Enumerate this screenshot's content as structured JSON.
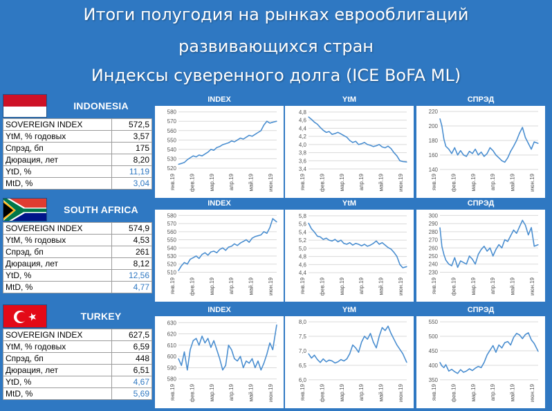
{
  "title": {
    "line1": "Итоги полугодия на рынках еврооблигаций",
    "line2": "развивающихся стран",
    "line3": "Индексы суверенного долга (ICE BoFA ML)"
  },
  "colors": {
    "background": "#2f78c2",
    "line": "#4a8ed0",
    "blue_value": "#2f78c2"
  },
  "months": [
    "янв.19",
    "фев.19",
    "мар.19",
    "апр.19",
    "май.19",
    "июн.19"
  ],
  "countries": [
    {
      "name": "INDONESIA",
      "flag": "indonesia-flag-icon",
      "stats": [
        {
          "label": "SOVEREIGN INDEX",
          "value": "572,5"
        },
        {
          "label": "YtM, % годовых",
          "value": "3,57"
        },
        {
          "label": "Спрэд, бп",
          "value": "175"
        },
        {
          "label": "Дюрация, лет",
          "value": "8,20"
        },
        {
          "label": "YtD, %",
          "value": "11,19"
        },
        {
          "label": "MtD, %",
          "value": "3,04"
        }
      ]
    },
    {
      "name": "SOUTH AFRICA",
      "flag": "south-africa-flag-icon",
      "stats": [
        {
          "label": "SOVEREIGN INDEX",
          "value": "574,9"
        },
        {
          "label": "YtM, % годовых",
          "value": "4,53"
        },
        {
          "label": "Спрэд, бп",
          "value": "261"
        },
        {
          "label": "Дюрация, лет",
          "value": "8,12"
        },
        {
          "label": "YtD, %",
          "value": "12,56"
        },
        {
          "label": "MtD, %",
          "value": "4,77"
        }
      ]
    },
    {
      "name": "TURKEY",
      "flag": "turkey-flag-icon",
      "stats": [
        {
          "label": "SOVEREIGN INDEX",
          "value": "627,5"
        },
        {
          "label": "YtM, % годовых",
          "value": "6,59"
        },
        {
          "label": "Спрэд, бп",
          "value": "448"
        },
        {
          "label": "Дюрация, лет",
          "value": "6,51"
        },
        {
          "label": "YtD, %",
          "value": "4,67"
        },
        {
          "label": "MtD, %",
          "value": "5,69"
        }
      ]
    }
  ],
  "chart_data": [
    {
      "type": "line",
      "country": "INDONESIA",
      "title": "INDEX",
      "y_ticks": [
        "580",
        "570",
        "560",
        "550",
        "540",
        "530",
        "520"
      ],
      "ylim": [
        517,
        582
      ],
      "x": [
        0,
        0.03,
        0.06,
        0.09,
        0.12,
        0.15,
        0.18,
        0.21,
        0.24,
        0.27,
        0.3,
        0.33,
        0.36,
        0.39,
        0.42,
        0.45,
        0.48,
        0.51,
        0.54,
        0.57,
        0.6,
        0.63,
        0.66,
        0.69,
        0.72,
        0.75,
        0.78,
        0.81,
        0.84,
        0.87,
        0.9,
        0.93,
        0.96,
        1.0
      ],
      "values": [
        524,
        525,
        526,
        529,
        531,
        533,
        532,
        534,
        533,
        535,
        537,
        540,
        539,
        542,
        543,
        545,
        546,
        547,
        549,
        548,
        550,
        552,
        551,
        553,
        555,
        554,
        556,
        558,
        560,
        566,
        570,
        568,
        569,
        570
      ]
    },
    {
      "type": "line",
      "country": "INDONESIA",
      "title": "YtM",
      "y_ticks": [
        "4,8",
        "4,6",
        "4,4",
        "4,2",
        "4,0",
        "3,8",
        "3,6",
        "3,4"
      ],
      "ylim": [
        3.35,
        4.85
      ],
      "x": [
        0,
        0.03,
        0.06,
        0.09,
        0.12,
        0.15,
        0.18,
        0.21,
        0.24,
        0.27,
        0.3,
        0.33,
        0.36,
        0.39,
        0.42,
        0.45,
        0.48,
        0.51,
        0.54,
        0.57,
        0.6,
        0.63,
        0.66,
        0.69,
        0.72,
        0.75,
        0.78,
        0.81,
        0.84,
        0.87,
        0.9,
        0.93,
        0.96,
        1.0
      ],
      "values": [
        4.68,
        4.62,
        4.55,
        4.5,
        4.42,
        4.35,
        4.3,
        4.32,
        4.25,
        4.27,
        4.3,
        4.26,
        4.22,
        4.18,
        4.1,
        4.05,
        4.08,
        4.0,
        4.02,
        4.05,
        4.0,
        3.98,
        3.95,
        3.97,
        4.0,
        3.94,
        3.92,
        3.96,
        3.9,
        3.8,
        3.72,
        3.6,
        3.58,
        3.57
      ]
    },
    {
      "type": "line",
      "country": "INDONESIA",
      "title": "СПРЭД",
      "y_ticks": [
        "220",
        "200",
        "180",
        "160",
        "140"
      ],
      "ylim": [
        138,
        222
      ],
      "x": [
        0,
        0.02,
        0.04,
        0.06,
        0.09,
        0.12,
        0.15,
        0.18,
        0.21,
        0.24,
        0.27,
        0.3,
        0.33,
        0.36,
        0.39,
        0.42,
        0.45,
        0.48,
        0.51,
        0.54,
        0.57,
        0.6,
        0.63,
        0.66,
        0.69,
        0.72,
        0.75,
        0.78,
        0.81,
        0.84,
        0.87,
        0.9,
        0.93,
        0.96,
        1.0
      ],
      "values": [
        210,
        200,
        182,
        172,
        168,
        162,
        170,
        160,
        166,
        160,
        158,
        165,
        162,
        168,
        160,
        164,
        158,
        162,
        170,
        166,
        160,
        156,
        152,
        150,
        156,
        165,
        172,
        180,
        190,
        198,
        184,
        176,
        168,
        178,
        176
      ]
    },
    {
      "type": "line",
      "country": "SOUTH AFRICA",
      "title": "INDEX",
      "y_ticks": [
        "580",
        "570",
        "560",
        "550",
        "540",
        "530",
        "520",
        "510"
      ],
      "ylim": [
        507,
        582
      ],
      "x": [
        0,
        0.03,
        0.06,
        0.09,
        0.12,
        0.15,
        0.18,
        0.21,
        0.24,
        0.27,
        0.3,
        0.33,
        0.36,
        0.39,
        0.42,
        0.45,
        0.48,
        0.51,
        0.54,
        0.57,
        0.6,
        0.63,
        0.66,
        0.69,
        0.72,
        0.75,
        0.78,
        0.81,
        0.84,
        0.87,
        0.9,
        0.93,
        0.96,
        1.0
      ],
      "values": [
        512,
        518,
        522,
        520,
        526,
        528,
        530,
        527,
        532,
        534,
        531,
        535,
        536,
        534,
        538,
        540,
        537,
        541,
        542,
        545,
        543,
        546,
        548,
        550,
        547,
        552,
        554,
        555,
        556,
        560,
        558,
        565,
        576,
        572
      ]
    },
    {
      "type": "line",
      "country": "SOUTH AFRICA",
      "title": "YtM",
      "y_ticks": [
        "5,8",
        "5,6",
        "5,4",
        "5,2",
        "5,0",
        "4,8",
        "4,6",
        "4,4"
      ],
      "ylim": [
        4.35,
        5.85
      ],
      "x": [
        0,
        0.03,
        0.06,
        0.09,
        0.12,
        0.15,
        0.18,
        0.21,
        0.24,
        0.27,
        0.3,
        0.33,
        0.36,
        0.39,
        0.42,
        0.45,
        0.48,
        0.51,
        0.54,
        0.57,
        0.6,
        0.63,
        0.66,
        0.69,
        0.72,
        0.75,
        0.78,
        0.81,
        0.84,
        0.87,
        0.9,
        0.93,
        0.96,
        1.0
      ],
      "values": [
        5.62,
        5.48,
        5.4,
        5.3,
        5.28,
        5.22,
        5.25,
        5.2,
        5.18,
        5.22,
        5.16,
        5.2,
        5.12,
        5.1,
        5.14,
        5.08,
        5.12,
        5.1,
        5.06,
        5.1,
        5.05,
        5.08,
        5.12,
        5.18,
        5.1,
        5.14,
        5.08,
        5.02,
        4.98,
        4.9,
        4.8,
        4.6,
        4.52,
        4.55
      ]
    },
    {
      "type": "line",
      "country": "SOUTH AFRICA",
      "title": "СПРЭД",
      "y_ticks": [
        "300",
        "290",
        "280",
        "270",
        "260",
        "250",
        "240",
        "230"
      ],
      "ylim": [
        227,
        302
      ],
      "x": [
        0,
        0.02,
        0.04,
        0.06,
        0.09,
        0.12,
        0.15,
        0.18,
        0.21,
        0.24,
        0.27,
        0.3,
        0.33,
        0.36,
        0.39,
        0.42,
        0.45,
        0.48,
        0.51,
        0.54,
        0.57,
        0.6,
        0.63,
        0.66,
        0.69,
        0.72,
        0.75,
        0.78,
        0.81,
        0.84,
        0.87,
        0.9,
        0.93,
        0.96,
        1.0
      ],
      "values": [
        285,
        262,
        252,
        245,
        240,
        238,
        248,
        236,
        244,
        242,
        240,
        250,
        246,
        240,
        252,
        258,
        262,
        256,
        260,
        250,
        258,
        264,
        260,
        270,
        268,
        275,
        282,
        278,
        286,
        294,
        288,
        276,
        285,
        262,
        264
      ]
    },
    {
      "type": "line",
      "country": "TURKEY",
      "title": "INDEX",
      "y_ticks": [
        "630",
        "620",
        "610",
        "600",
        "590",
        "580"
      ],
      "ylim": [
        578,
        632
      ],
      "x": [
        0,
        0.03,
        0.06,
        0.09,
        0.12,
        0.15,
        0.18,
        0.21,
        0.24,
        0.27,
        0.3,
        0.33,
        0.36,
        0.39,
        0.42,
        0.45,
        0.48,
        0.51,
        0.54,
        0.57,
        0.6,
        0.63,
        0.66,
        0.69,
        0.72,
        0.75,
        0.78,
        0.81,
        0.84,
        0.87,
        0.9,
        0.93,
        0.96,
        1.0
      ],
      "values": [
        598,
        592,
        604,
        588,
        606,
        614,
        616,
        610,
        618,
        612,
        616,
        608,
        614,
        606,
        598,
        588,
        592,
        610,
        606,
        598,
        596,
        600,
        590,
        596,
        594,
        598,
        590,
        596,
        588,
        594,
        602,
        612,
        606,
        628
      ]
    },
    {
      "type": "line",
      "country": "TURKEY",
      "title": "YtM",
      "y_ticks": [
        "8,0",
        "7,5",
        "7,0",
        "6,5",
        "6,0"
      ],
      "ylim": [
        5.95,
        8.05
      ],
      "x": [
        0,
        0.03,
        0.06,
        0.09,
        0.12,
        0.15,
        0.18,
        0.21,
        0.24,
        0.27,
        0.3,
        0.33,
        0.36,
        0.39,
        0.42,
        0.45,
        0.48,
        0.51,
        0.54,
        0.57,
        0.6,
        0.63,
        0.66,
        0.69,
        0.72,
        0.75,
        0.78,
        0.81,
        0.84,
        0.87,
        0.9,
        0.93,
        0.96,
        1.0
      ],
      "values": [
        6.9,
        6.75,
        6.85,
        6.7,
        6.6,
        6.72,
        6.62,
        6.68,
        6.65,
        6.58,
        6.62,
        6.7,
        6.65,
        6.72,
        6.9,
        7.2,
        7.1,
        6.95,
        7.3,
        7.5,
        7.4,
        7.6,
        7.3,
        7.1,
        7.5,
        7.8,
        7.7,
        7.85,
        7.6,
        7.4,
        7.2,
        7.05,
        6.9,
        6.6
      ]
    },
    {
      "type": "line",
      "country": "TURKEY",
      "title": "СПРЭД",
      "y_ticks": [
        "550",
        "500",
        "450",
        "400",
        "350"
      ],
      "ylim": [
        345,
        555
      ],
      "x": [
        0,
        0.02,
        0.04,
        0.06,
        0.09,
        0.12,
        0.15,
        0.18,
        0.21,
        0.24,
        0.27,
        0.3,
        0.33,
        0.36,
        0.39,
        0.42,
        0.45,
        0.48,
        0.51,
        0.54,
        0.57,
        0.6,
        0.63,
        0.66,
        0.69,
        0.72,
        0.75,
        0.78,
        0.81,
        0.84,
        0.87,
        0.9,
        0.93,
        0.96,
        1.0
      ],
      "values": [
        410,
        398,
        392,
        402,
        380,
        386,
        378,
        372,
        385,
        376,
        380,
        388,
        382,
        390,
        396,
        392,
        410,
        436,
        452,
        468,
        445,
        470,
        460,
        478,
        482,
        470,
        496,
        510,
        505,
        492,
        506,
        512,
        488,
        475,
        448
      ]
    }
  ]
}
